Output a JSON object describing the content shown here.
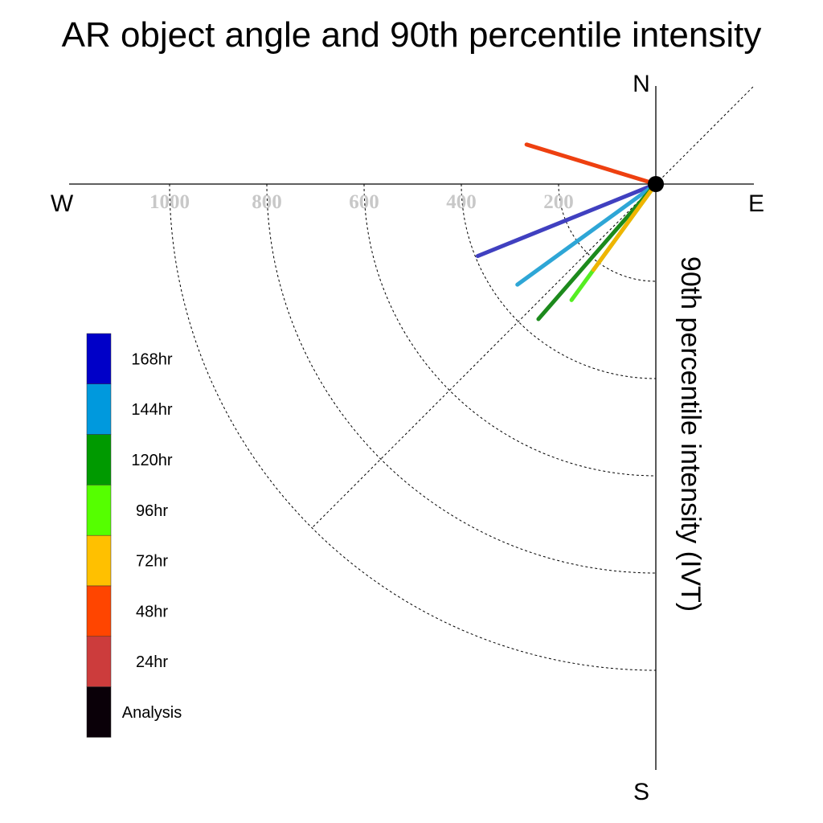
{
  "chart_data": {
    "type": "polar-vector",
    "title": "AR object angle and 90th percentile intensity",
    "ylabel": "90th percentile intensity (IVT)",
    "compass": {
      "north": "N",
      "south": "S",
      "east": "E",
      "west": "W"
    },
    "radial_ticks": [
      200,
      400,
      600,
      800,
      1000
    ],
    "radial_max": 1200,
    "reference_angle_deg": 225,
    "series": [
      {
        "name": "168hr",
        "color": "#0000c8",
        "line_color": "#4040c0",
        "angle_deg": 248,
        "intensity": 395
      },
      {
        "name": "144hr",
        "color": "#0099dd",
        "line_color": "#2ea6d6",
        "angle_deg": 234,
        "intensity": 352
      },
      {
        "name": "120hr",
        "color": "#009a00",
        "line_color": "#1c8a1c",
        "angle_deg": 221,
        "intensity": 368
      },
      {
        "name": "96hr",
        "color": "#55ff00",
        "line_color": "#55ee22",
        "angle_deg": 216,
        "intensity": 295
      },
      {
        "name": "72hr",
        "color": "#ffc000",
        "line_color": "#f0b400",
        "angle_deg": 216,
        "intensity": 218
      },
      {
        "name": "48hr",
        "color": "#ff4500",
        "line_color": "#ee4010",
        "angle_deg": 287,
        "intensity": 278
      },
      {
        "name": "24hr",
        "color": "#cc3c3c",
        "line_color": "#cc3c3c",
        "angle_deg": null,
        "intensity": null
      },
      {
        "name": "Analysis",
        "color": "#0a0008",
        "line_color": "#000000",
        "angle_deg": null,
        "intensity": null
      }
    ]
  }
}
